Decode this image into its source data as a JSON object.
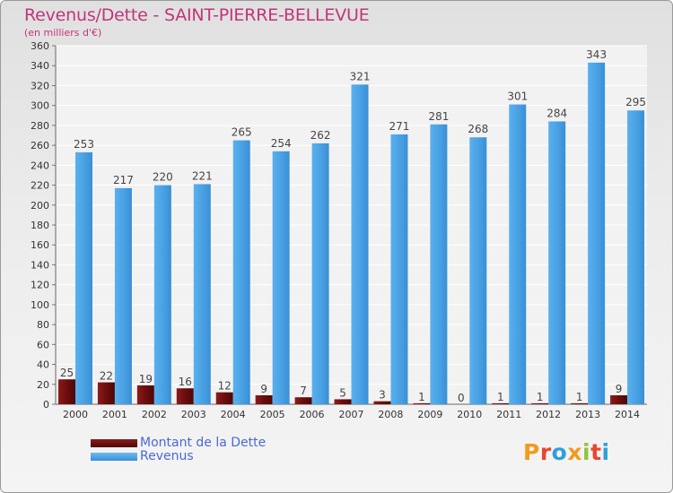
{
  "title": "Revenus/Dette - SAINT-PIERRE-BELLEVUE",
  "subtitle": "(en milliers d'€)",
  "logo": {
    "text": "Proxiti",
    "colors": [
      "#f39a1e",
      "#e9452f",
      "#2f9fd8",
      "#f39a1e",
      "#8cc63f",
      "#e9452f",
      "#2f9fd8"
    ]
  },
  "colors": {
    "dette": "#6b0d0d",
    "revenus": "#4da6e8",
    "title": "#c2347a",
    "legend_text": "#4a68d8"
  },
  "chart_data": {
    "type": "bar",
    "title": "Revenus/Dette - SAINT-PIERRE-BELLEVUE",
    "ylabel": "(en milliers d'€)",
    "xlabel": "",
    "ylim": [
      0,
      360
    ],
    "ytick_step": 20,
    "grid": true,
    "legend_position": "bottom-left",
    "categories": [
      "2000",
      "2001",
      "2002",
      "2003",
      "2004",
      "2005",
      "2006",
      "2007",
      "2008",
      "2009",
      "2010",
      "2011",
      "2012",
      "2013",
      "2014"
    ],
    "series": [
      {
        "name": "Montant de la Dette",
        "values": [
          25,
          22,
          19,
          16,
          12,
          9,
          7,
          5,
          3,
          1,
          0,
          1,
          1,
          1,
          9
        ]
      },
      {
        "name": "Revenus",
        "values": [
          253,
          217,
          220,
          221,
          265,
          254,
          262,
          321,
          271,
          281,
          268,
          301,
          284,
          343,
          295
        ]
      }
    ]
  }
}
